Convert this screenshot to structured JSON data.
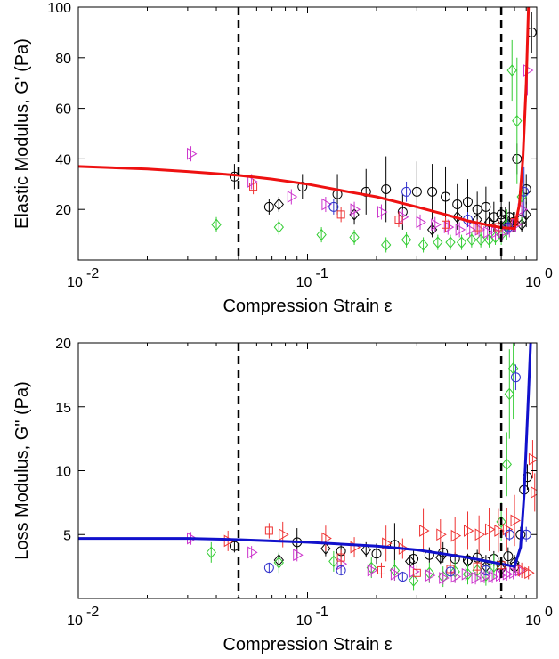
{
  "chart_data": [
    {
      "type": "scatter",
      "panel": "top",
      "xlabel": "Compression Strain ε",
      "ylabel": "Elastic Modulus, G' (Pa)",
      "xscale": "log",
      "xlim": [
        0.01,
        1
      ],
      "ylim": [
        0,
        100
      ],
      "xticks": [
        {
          "v": 0.01,
          "base": "10",
          "exp": "-2"
        },
        {
          "v": 0.1,
          "base": "10",
          "exp": "-1"
        },
        {
          "v": 1,
          "base": "10",
          "exp": "0"
        }
      ],
      "yticks": [
        "20",
        "40",
        "60",
        "80",
        "100"
      ],
      "vlines": [
        0.05,
        0.7
      ],
      "grid": false,
      "fit": {
        "color": "#ee1111",
        "x": [
          0.01,
          0.02,
          0.03,
          0.05,
          0.07,
          0.1,
          0.15,
          0.2,
          0.3,
          0.4,
          0.5,
          0.6,
          0.7,
          0.8,
          0.84,
          0.87,
          0.9,
          0.92
        ],
        "y": [
          37,
          36,
          35,
          33.5,
          32,
          30,
          27,
          25,
          21,
          18,
          15.5,
          14,
          12.8,
          12.5,
          22,
          40,
          70,
          100
        ]
      },
      "series": [
        {
          "marker": "circle",
          "color": "#000000",
          "x": [
            0.048,
            0.068,
            0.095,
            0.135,
            0.18,
            0.22,
            0.26,
            0.3,
            0.35,
            0.4,
            0.45,
            0.5,
            0.55,
            0.6,
            0.65,
            0.7,
            0.73,
            0.76,
            0.79,
            0.82,
            0.86,
            0.9,
            0.95
          ],
          "y": [
            33,
            21,
            29,
            26,
            27,
            28,
            19,
            27,
            27,
            25,
            22,
            23,
            20,
            21,
            17,
            18,
            16,
            17,
            15,
            40,
            16,
            28,
            90
          ],
          "err": [
            5,
            3,
            5,
            8,
            9,
            13,
            7,
            12,
            11,
            12,
            8,
            9,
            7,
            8,
            6,
            6,
            5,
            6,
            4,
            6,
            4,
            6,
            8
          ]
        },
        {
          "marker": "diamond",
          "color": "#000000",
          "x": [
            0.075,
            0.16,
            0.35,
            0.45,
            0.55,
            0.62,
            0.7,
            0.75,
            0.8,
            0.86,
            0.9
          ],
          "y": [
            22,
            18,
            12,
            17,
            16,
            15,
            16,
            14,
            15,
            14,
            18
          ],
          "err": [
            3,
            4,
            3,
            5,
            4,
            4,
            4,
            3,
            4,
            3,
            5
          ]
        },
        {
          "marker": "diamond",
          "color": "#33cc33",
          "x": [
            0.04,
            0.075,
            0.115,
            0.16,
            0.22,
            0.27,
            0.32,
            0.37,
            0.42,
            0.47,
            0.52,
            0.57,
            0.62,
            0.66,
            0.7,
            0.74,
            0.78,
            0.82,
            0.86
          ],
          "y": [
            14,
            13,
            10,
            9,
            6,
            8,
            6,
            7,
            7,
            7,
            8,
            8,
            8,
            9,
            10,
            14,
            75,
            55,
            25
          ],
          "err": [
            3,
            3,
            3,
            3,
            3,
            3,
            3,
            3,
            3,
            3,
            3,
            3,
            3,
            3,
            4,
            6,
            12,
            25,
            10
          ]
        },
        {
          "marker": "triangle-right",
          "color": "#cc33cc",
          "x": [
            0.031,
            0.057,
            0.085,
            0.12,
            0.16,
            0.21,
            0.26,
            0.31,
            0.36,
            0.41,
            0.46,
            0.51,
            0.56,
            0.61,
            0.66,
            0.71,
            0.76,
            0.81,
            0.86,
            0.91
          ],
          "y": [
            42,
            31,
            25,
            22,
            20,
            19,
            17,
            15,
            14,
            13,
            12,
            12,
            12,
            11,
            11,
            11,
            12,
            14,
            20,
            75
          ],
          "err": [
            3,
            3,
            3,
            3,
            3,
            3,
            3,
            3,
            3,
            3,
            3,
            3,
            3,
            3,
            3,
            3,
            3,
            3,
            3,
            10
          ]
        },
        {
          "marker": "square",
          "color": "#ee3333",
          "x": [
            0.058,
            0.14,
            0.25,
            0.4,
            0.55,
            0.68,
            0.8
          ],
          "y": [
            29,
            18,
            16,
            14,
            13,
            13,
            15
          ],
          "err": [
            3,
            3,
            3,
            3,
            3,
            3,
            3
          ]
        },
        {
          "marker": "circle",
          "color": "#3333cc",
          "x": [
            0.13,
            0.27,
            0.5,
            0.75,
            0.88
          ],
          "y": [
            21,
            27,
            16,
            13,
            27
          ],
          "err": [
            3,
            4,
            3,
            3,
            10
          ]
        }
      ]
    },
    {
      "type": "scatter",
      "panel": "bottom",
      "xlabel": "Compression Strain ε",
      "ylabel": "Loss Modulus, G\" (Pa)",
      "xscale": "log",
      "xlim": [
        0.01,
        1
      ],
      "ylim": [
        0,
        20
      ],
      "xticks": [
        {
          "v": 0.01,
          "base": "10",
          "exp": "-2"
        },
        {
          "v": 0.1,
          "base": "10",
          "exp": "-1"
        },
        {
          "v": 1,
          "base": "10",
          "exp": "0"
        }
      ],
      "yticks": [
        "5",
        "10",
        "15",
        "20"
      ],
      "vlines": [
        0.05,
        0.7
      ],
      "grid": false,
      "fit": {
        "color": "#1111cc",
        "x": [
          0.01,
          0.03,
          0.05,
          0.1,
          0.2,
          0.3,
          0.5,
          0.7,
          0.8,
          0.85,
          0.88,
          0.9,
          0.92,
          0.94
        ],
        "y": [
          4.7,
          4.7,
          4.6,
          4.4,
          4.1,
          3.8,
          3.2,
          2.7,
          2.5,
          4,
          8,
          12,
          16,
          20
        ]
      },
      "series": [
        {
          "marker": "circle",
          "color": "#000000",
          "x": [
            0.048,
            0.09,
            0.14,
            0.2,
            0.24,
            0.29,
            0.34,
            0.39,
            0.44,
            0.5,
            0.55,
            0.6,
            0.65,
            0.7,
            0.75,
            0.8,
            0.85,
            0.88,
            0.91
          ],
          "y": [
            4.1,
            4.4,
            3.7,
            3.5,
            4.2,
            3.1,
            3.4,
            3.6,
            3.1,
            3.0,
            3.2,
            2.9,
            3.1,
            2.6,
            3.3,
            2.5,
            5.0,
            8.5,
            9.5
          ],
          "err": [
            0.5,
            1.1,
            0.6,
            0.8,
            1.7,
            0.7,
            0.6,
            0.8,
            0.5,
            0.5,
            0.6,
            0.5,
            0.6,
            0.5,
            0.7,
            0.5,
            0.6,
            0.8,
            1.0
          ]
        },
        {
          "marker": "diamond",
          "color": "#000000",
          "x": [
            0.075,
            0.12,
            0.18,
            0.28,
            0.38,
            0.5,
            0.6,
            0.7,
            0.8
          ],
          "y": [
            3.0,
            3.9,
            3.8,
            2.9,
            3.2,
            2.9,
            2.5,
            2.3,
            2.8
          ],
          "err": [
            0.5,
            0.6,
            0.6,
            0.5,
            0.5,
            0.5,
            0.5,
            0.5,
            0.6
          ]
        },
        {
          "marker": "diamond",
          "color": "#33cc33",
          "x": [
            0.038,
            0.075,
            0.13,
            0.19,
            0.24,
            0.29,
            0.34,
            0.39,
            0.44,
            0.5,
            0.55,
            0.6,
            0.65,
            0.7,
            0.74,
            0.76,
            0.79
          ],
          "y": [
            3.6,
            2.8,
            2.9,
            2.4,
            2.2,
            1.4,
            2.0,
            1.7,
            2.1,
            1.9,
            2.2,
            1.8,
            2.5,
            6.0,
            10.5,
            16,
            18
          ],
          "err": [
            0.8,
            0.8,
            0.8,
            0.8,
            0.8,
            0.8,
            0.8,
            0.8,
            0.8,
            0.8,
            0.8,
            0.8,
            1.0,
            1.5,
            2.5,
            3.5,
            4
          ]
        },
        {
          "marker": "triangle-right",
          "color": "#cc33cc",
          "x": [
            0.031,
            0.057,
            0.09,
            0.14,
            0.19,
            0.24,
            0.29,
            0.34,
            0.39,
            0.44,
            0.49,
            0.54,
            0.59,
            0.64,
            0.69,
            0.74,
            0.79,
            0.84
          ],
          "y": [
            4.7,
            3.6,
            3.4,
            2.7,
            2.2,
            1.9,
            2.1,
            1.8,
            1.6,
            1.7,
            1.9,
            1.6,
            1.7,
            1.7,
            1.8,
            1.9,
            2.0,
            2.2
          ],
          "err": [
            0.5,
            0.5,
            0.5,
            0.5,
            0.5,
            0.5,
            0.5,
            0.5,
            0.5,
            0.5,
            0.5,
            0.5,
            0.5,
            0.5,
            0.5,
            0.5,
            0.5,
            0.5
          ]
        },
        {
          "marker": "triangle-right",
          "color": "#ee3333",
          "x": [
            0.045,
            0.078,
            0.12,
            0.16,
            0.22,
            0.26,
            0.32,
            0.38,
            0.44,
            0.5,
            0.56,
            0.62,
            0.68,
            0.74,
            0.8,
            0.86,
            0.92,
            0.96,
            0.98
          ],
          "y": [
            4.5,
            5.0,
            4.7,
            4.0,
            4.3,
            3.9,
            5.3,
            5.0,
            4.9,
            5.3,
            5.0,
            5.4,
            5.3,
            5.4,
            6.1,
            2.2,
            2.0,
            10.9,
            8.3
          ],
          "err": [
            0.8,
            1.0,
            1.0,
            0.8,
            1.4,
            0.8,
            1.7,
            1.2,
            1.5,
            1.5,
            1.5,
            1.7,
            1.7,
            1.7,
            2.0,
            0.6,
            0.5,
            1.5,
            1.5
          ]
        },
        {
          "marker": "square",
          "color": "#ee3333",
          "x": [
            0.068,
            0.14,
            0.21,
            0.3,
            0.42,
            0.55,
            0.7
          ],
          "y": [
            5.3,
            3.2,
            2.2,
            2.0,
            2.3,
            2.5,
            2.6
          ],
          "err": [
            0.6,
            0.6,
            0.6,
            0.6,
            0.6,
            0.6,
            0.6
          ]
        },
        {
          "marker": "circle",
          "color": "#3333cc",
          "x": [
            0.068,
            0.14,
            0.26,
            0.42,
            0.6,
            0.76,
            0.81,
            0.9
          ],
          "y": [
            2.4,
            2.2,
            1.7,
            2.1,
            2.2,
            5.0,
            17.3,
            5.0
          ],
          "err": [
            0.4,
            0.4,
            0.4,
            0.4,
            0.4,
            0.5,
            1.0,
            0.6
          ]
        }
      ]
    }
  ]
}
